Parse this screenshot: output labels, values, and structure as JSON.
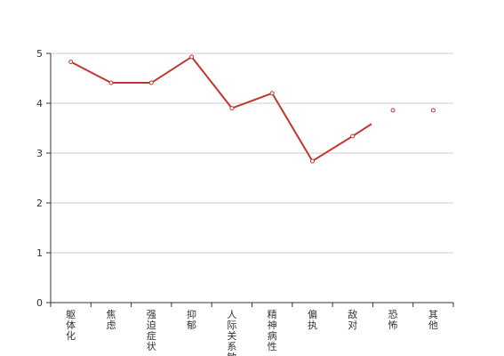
{
  "chart_data": {
    "type": "line",
    "title": "",
    "xlabel": "",
    "ylabel": "",
    "ylim": [
      0,
      5
    ],
    "yticks": [
      0,
      1,
      2,
      3,
      4,
      5
    ],
    "grid": true,
    "legend": "none",
    "line_color": "#c23531",
    "grid_color": "#cccccc",
    "axis_color": "#333333",
    "categories": [
      "躯体化",
      "焦虑",
      "强迫症状",
      "抑郁",
      "人际关系敏感",
      "精神病性",
      "偏执",
      "敌对",
      "恐怖",
      "其他"
    ],
    "series": [
      {
        "values": [
          4.83,
          4.41,
          4.41,
          4.93,
          3.9,
          4.2,
          2.84,
          3.34,
          3.86,
          3.86
        ]
      }
    ]
  }
}
